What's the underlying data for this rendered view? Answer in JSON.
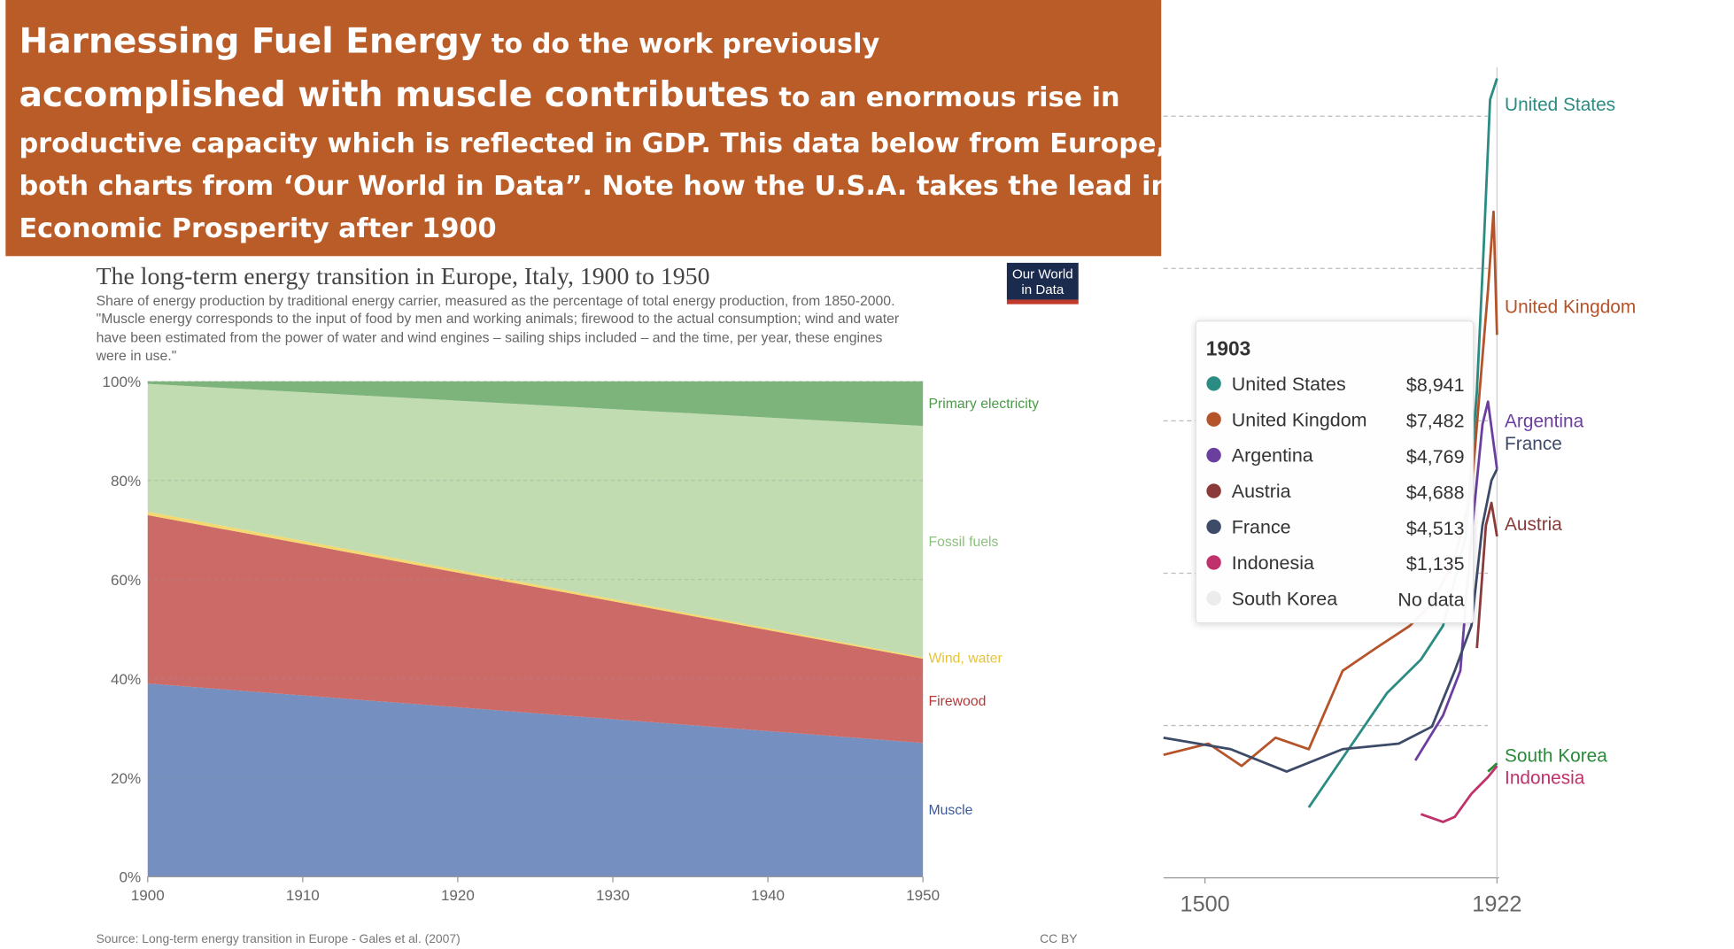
{
  "header": {
    "lines": [
      [
        "Harnessing Fuel Energy",
        " to do the work previously"
      ],
      [
        "accomplished with muscle contributes",
        " to an enormous rise in"
      ],
      [
        "productive capacity which is reflected in GDP. This data below from Europe,"
      ],
      [
        "both charts from ‘Our World in Data”. Note how the U.S.A. takes the lead in"
      ],
      [
        "Economic Prosperity after 1900"
      ]
    ]
  },
  "chart_data": [
    {
      "type": "area",
      "stacked": true,
      "title": "The long-term energy transition in Europe, Italy, 1900 to 1950",
      "subtitle": [
        "Share of energy production by traditional energy carrier, measured as the percentage of total energy production, from 1850-2000.",
        "\"Muscle energy corresponds to the input of food by men and working animals; firewood to the actual consumption; wind and water",
        "have been estimated from the power of water and wind engines – sailing ships included – and the time, per year, these engines",
        "were in use.\""
      ],
      "logo": [
        "Our World",
        "in Data"
      ],
      "source": "Source: Long-term energy transition in Europe - Gales et al. (2007)",
      "license": "CC BY",
      "x": [
        1900,
        1950
      ],
      "series": [
        {
          "name": "Muscle",
          "color": "#7590c0",
          "label_color": "#3b5a99",
          "values": [
            39,
            27
          ]
        },
        {
          "name": "Firewood",
          "color": "#cc6a67",
          "label_color": "#b23a3a",
          "values": [
            34,
            17
          ]
        },
        {
          "name": "Wind, water",
          "color": "#f4d970",
          "label_color": "#e6c43a",
          "values": [
            0.7,
            0.3
          ]
        },
        {
          "name": "Fossil fuels",
          "color": "#c1dcb0",
          "label_color": "#8cc07c",
          "values": [
            25.8,
            46.7
          ]
        },
        {
          "name": "Primary electricity",
          "color": "#7db47c",
          "label_color": "#4a9a48",
          "values": [
            0.5,
            9
          ]
        }
      ],
      "xlim": [
        1900,
        1950
      ],
      "xticks": [
        1900,
        1910,
        1920,
        1930,
        1940,
        1950
      ],
      "ylim": [
        0,
        100
      ],
      "yticks": [
        {
          "value": 0,
          "label": "0%"
        },
        {
          "value": 20,
          "label": "20%"
        },
        {
          "value": 40,
          "label": "40%"
        },
        {
          "value": 60,
          "label": "60%"
        },
        {
          "value": 80,
          "label": "80%"
        },
        {
          "value": 100,
          "label": "100%"
        }
      ],
      "grid": true
    },
    {
      "type": "line",
      "log_y": true,
      "xlim": [
        1440,
        1925
      ],
      "xticks": [
        1500,
        1922
      ],
      "ylim": [
        500,
        20000
      ],
      "yticks": [
        1000,
        2000,
        4000,
        8000,
        16000
      ],
      "grid": true,
      "hover_x": 1922,
      "series": [
        {
          "name": "United States",
          "color": "#2a8c82",
          "x": [
            1650,
            1763,
            1812,
            1844,
            1877,
            1893,
            1903,
            1912,
            1922
          ],
          "values": [
            689,
            1159,
            1350,
            1574,
            2365,
            4585,
            8941,
            17250,
            19000
          ]
        },
        {
          "name": "United Kingdom",
          "color": "#b5532a",
          "x": [
            1440,
            1505,
            1553,
            1602,
            1650,
            1699,
            1747,
            1796,
            1828,
            1861,
            1885,
            1901,
            1909,
            1917,
            1922
          ],
          "values": [
            875,
            921,
            832,
            946,
            898,
            1283,
            1422,
            1574,
            1742,
            2137,
            2898,
            5345,
            7250,
            10360,
            5915
          ]
        },
        {
          "name": "Argentina",
          "color": "#6b3fa0",
          "x": [
            1804,
            1844,
            1869,
            1885,
            1901,
            1909,
            1922
          ],
          "values": [
            853,
            1047,
            1283,
            2365,
            3935,
            4365,
            3212
          ]
        },
        {
          "name": "France",
          "color": "#3d4a68",
          "x": [
            1440,
            1537,
            1618,
            1699,
            1780,
            1828,
            1861,
            1885,
            1901,
            1914,
            1922
          ],
          "values": [
            946,
            898,
            811,
            898,
            921,
            995,
            1283,
            1574,
            2487,
            3049,
            3212
          ]
        },
        {
          "name": "Austria",
          "color": "#8b3a3a",
          "x": [
            1893,
            1906,
            1914,
            1922
          ],
          "values": [
            1422,
            2487,
            2754,
            2365
          ]
        },
        {
          "name": "South Korea",
          "color": "#2a8a3a",
          "x": [
            1909,
            1922
          ],
          "values": [
            811,
            842
          ]
        },
        {
          "name": "Indonesia",
          "color": "#c0306a",
          "x": [
            1812,
            1844,
            1861,
            1885,
            1909,
            1922
          ],
          "values": [
            668,
            645,
            660,
            733,
            791,
            832
          ]
        }
      ],
      "tooltip": {
        "title": "1903",
        "rows": [
          {
            "name": "United States",
            "value": "$8,941",
            "color": "#2a8c82"
          },
          {
            "name": "United Kingdom",
            "value": "$7,482",
            "color": "#b5532a"
          },
          {
            "name": "Argentina",
            "value": "$4,769",
            "color": "#6b3fa0"
          },
          {
            "name": "Austria",
            "value": "$4,688",
            "color": "#8b3a3a"
          },
          {
            "name": "France",
            "value": "$4,513",
            "color": "#3d4a68"
          },
          {
            "name": "Indonesia",
            "value": "$1,135",
            "color": "#c0306a"
          },
          {
            "name": "South Korea",
            "value": "No data",
            "color": "#ececec",
            "muted": true
          }
        ]
      }
    }
  ]
}
